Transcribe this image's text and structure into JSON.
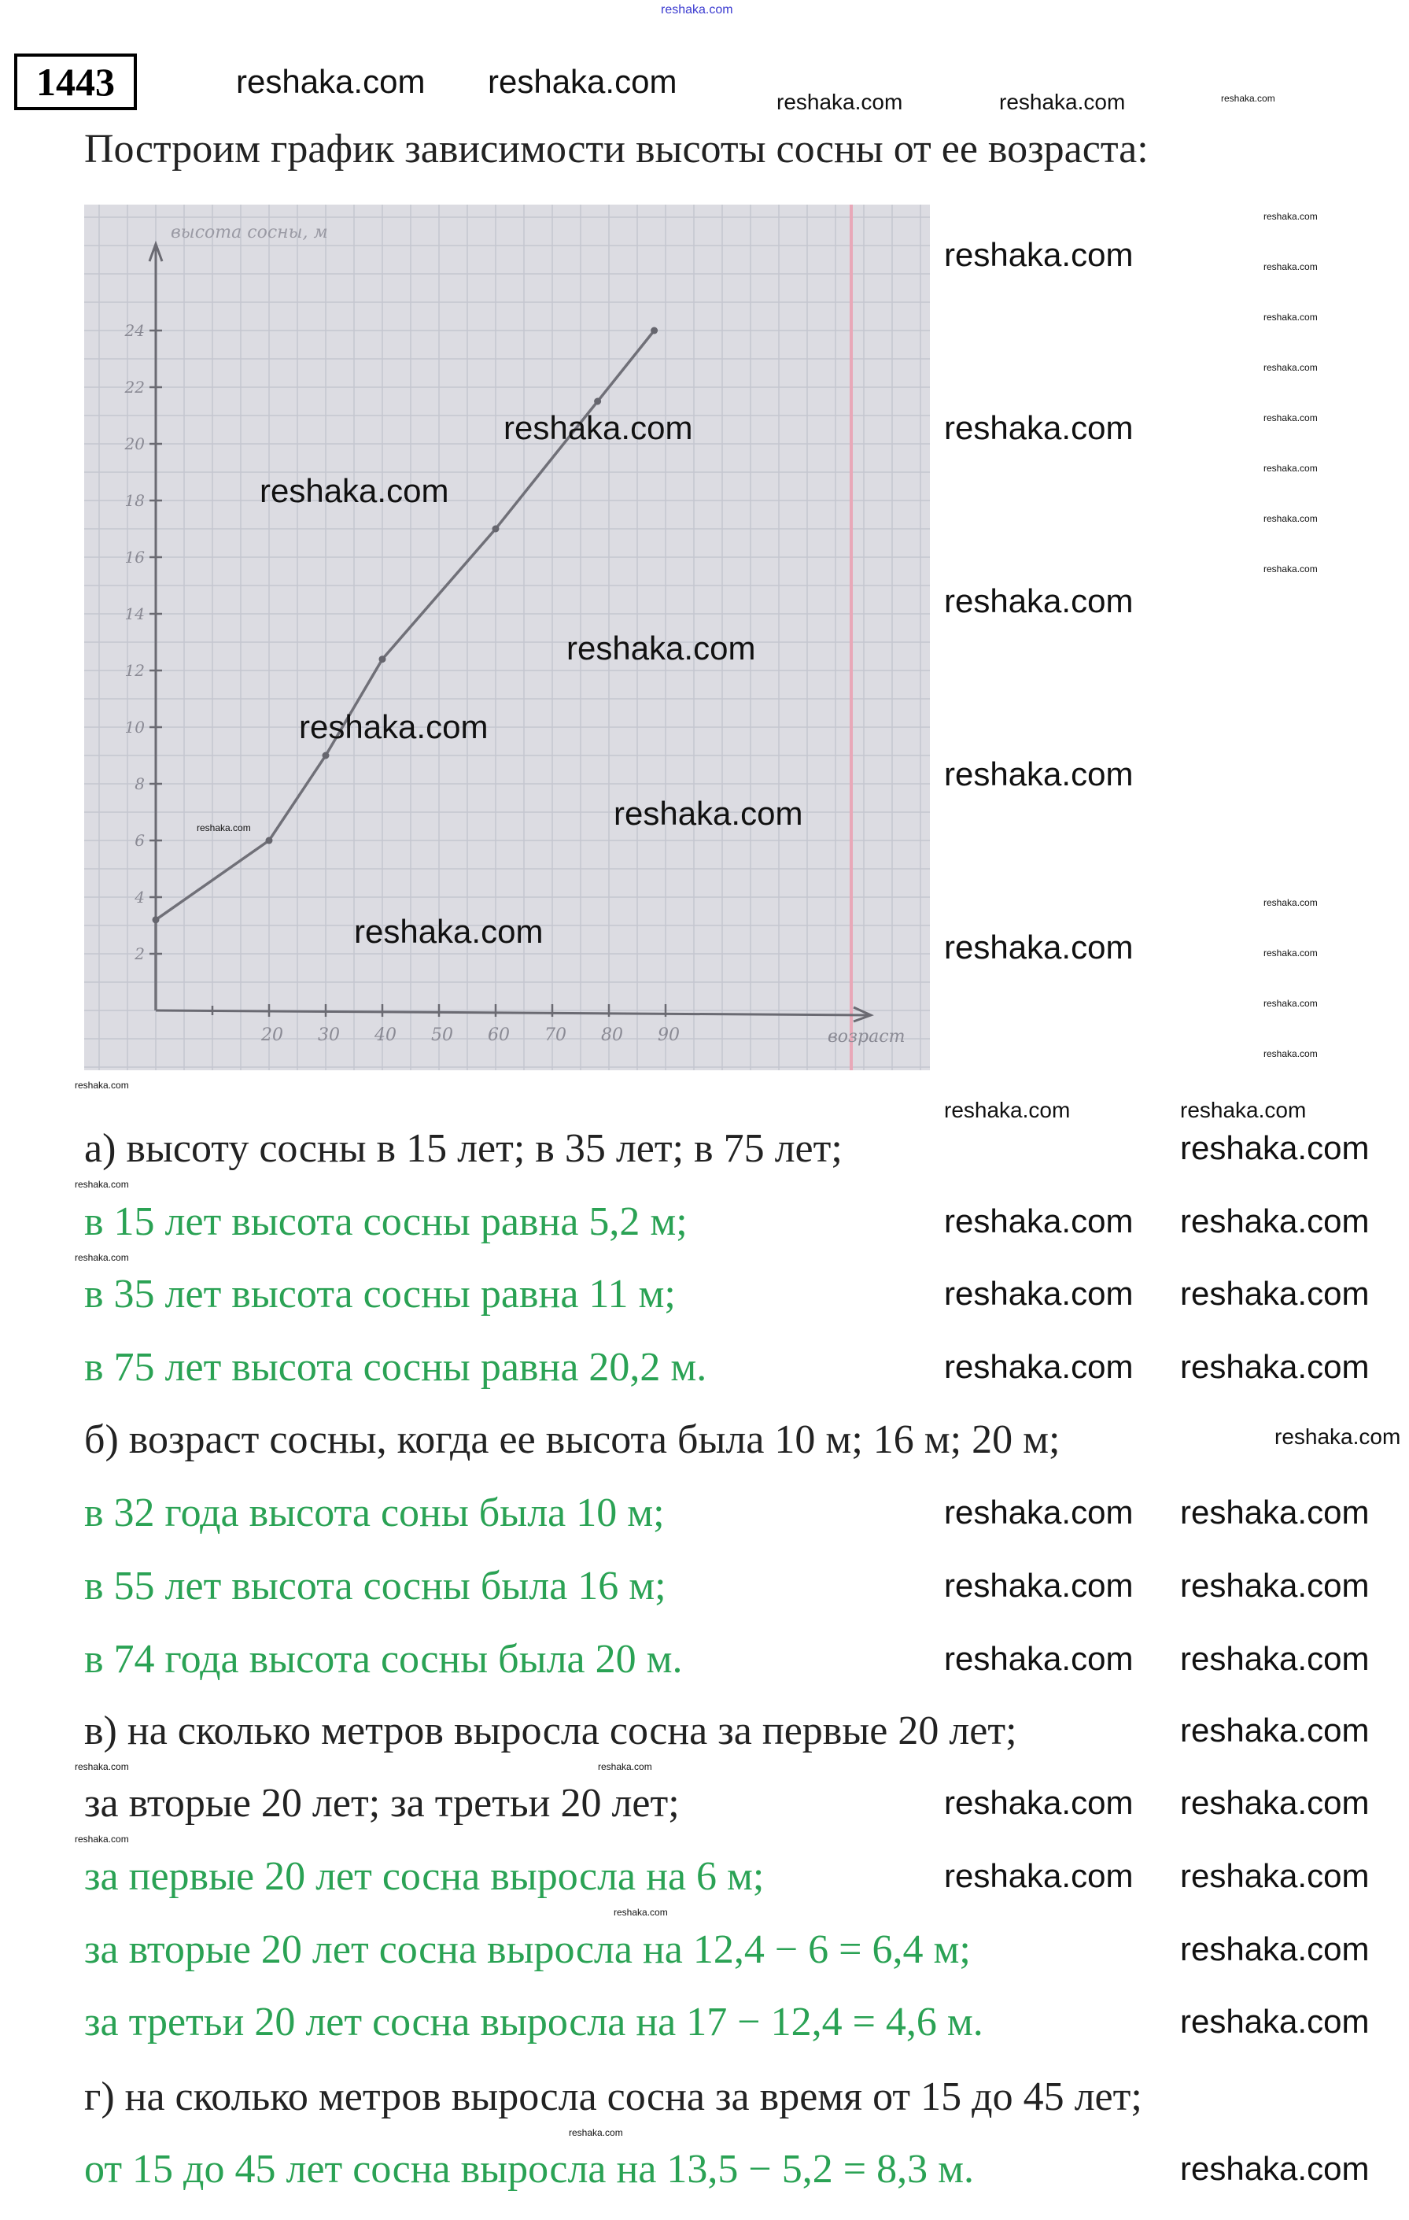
{
  "watermark": "reshaka.com",
  "problem_number": "1443",
  "title": "Построим график зависимости высоты сосны от ее возраста:",
  "lines": [
    {
      "text": "а) высоту сосны в 15 лет;  в 35 лет;  в 75 лет;",
      "kind": "question"
    },
    {
      "text": "в 15 лет высота сосны равна 5,2 м;",
      "kind": "answer"
    },
    {
      "text": "в 35 лет высота сосны равна 11 м;",
      "kind": "answer"
    },
    {
      "text": "в 75 лет высота сосны равна 20,2 м.",
      "kind": "answer"
    },
    {
      "text": "б) возраст сосны, когда ее высота была 10 м;  16 м;  20 м;",
      "kind": "question"
    },
    {
      "text": "в 32 года высота соны была 10 м;",
      "kind": "answer"
    },
    {
      "text": "в 55 лет высота сосны была 16 м;",
      "kind": "answer"
    },
    {
      "text": "в 74 года высота сосны была 20 м.",
      "kind": "answer"
    },
    {
      "text": "в) на сколько метров выросла сосна за первые 20 лет;",
      "kind": "question"
    },
    {
      "text": "за вторые 20 лет;  за третьи 20 лет;",
      "kind": "question"
    },
    {
      "text": "за первые 20 лет сосна выросла на 6 м;",
      "kind": "answer"
    },
    {
      "text": "за вторые 20 лет сосна выросла на 12,4 − 6 = 6,4 м;",
      "kind": "answer"
    },
    {
      "text": "за третьи 20 лет сосна выросла на 17 − 12,4 = 4,6 м.",
      "kind": "answer"
    },
    {
      "text": "г) на сколько метров выросла сосна за время от 15 до 45 лет;",
      "kind": "question"
    },
    {
      "text": "от 15 до 45 лет сосна выросла на 13,5 − 5,2 = 8,3 м.",
      "kind": "answer"
    }
  ],
  "colors": {
    "answer": "#2aa254",
    "question": "#222222",
    "paper": "#dcdce2",
    "grid": "#c4c6d0",
    "margin_line": "#e8a8b8",
    "ink": "#6a6a72"
  },
  "chart_data": {
    "type": "line",
    "xlabel": "возраст",
    "ylabel": "высота сосны, м",
    "x_ticks": [
      "20",
      "30",
      "40",
      "50",
      "60",
      "70",
      "80",
      "90"
    ],
    "y_ticks": [
      "2",
      "4",
      "6",
      "8",
      "10",
      "12",
      "14",
      "16",
      "18",
      "20",
      "22",
      "24"
    ],
    "xlim": [
      0,
      110
    ],
    "ylim": [
      0,
      26
    ],
    "grid": true,
    "x": [
      0,
      0,
      20,
      30,
      40,
      60,
      78,
      88
    ],
    "y": [
      0,
      3.2,
      6,
      9,
      12.4,
      17,
      21.5,
      24
    ]
  }
}
